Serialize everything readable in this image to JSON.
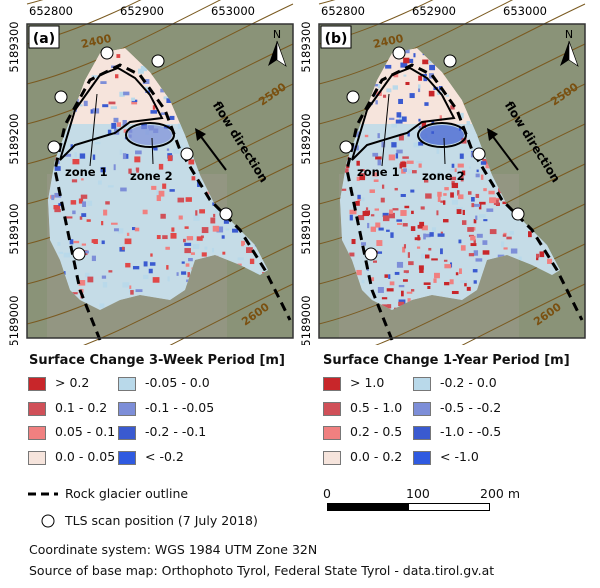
{
  "panels": [
    {
      "label": "(a)",
      "x_ticks": [
        "652800",
        "652900",
        "653000"
      ],
      "y_ticks": [
        "5189300",
        "5189200",
        "5189100",
        "5189000"
      ],
      "contours": [
        "2400",
        "2500",
        "2600"
      ],
      "zone1": "zone 1",
      "zone2": "zone 2",
      "flow": "flow direction",
      "north": "N",
      "mode": "3week"
    },
    {
      "label": "(b)",
      "x_ticks": [
        "652800",
        "652900",
        "653000"
      ],
      "y_ticks": [
        "5189300",
        "5189200",
        "5189100",
        "5189000"
      ],
      "contours": [
        "2400",
        "2500",
        "2600"
      ],
      "zone1": "zone 1",
      "zone2": "zone 2",
      "flow": "flow direction",
      "north": "N",
      "mode": "1year"
    }
  ],
  "legend_3week": {
    "title": "Surface Change 3-Week Period [m]",
    "classes": [
      {
        "label": "> 0.2",
        "color": "#c8262a"
      },
      {
        "label": "0.1 - 0.2",
        "color": "#d05058"
      },
      {
        "label": "0.05 - 0.1",
        "color": "#f08080"
      },
      {
        "label": "0.0 - 0.05",
        "color": "#f6e4dc"
      },
      {
        "label": "-0.05 - 0.0",
        "color": "#b9d9ea"
      },
      {
        "label": "-0.1 - -0.05",
        "color": "#7d8ed8"
      },
      {
        "label": "-0.2 - -0.1",
        "color": "#3a5ad0"
      },
      {
        "label": "< -0.2",
        "color": "#2f5ae0"
      }
    ]
  },
  "legend_1year": {
    "title": "Surface Change 1-Year Period [m]",
    "classes": [
      {
        "label": "> 1.0",
        "color": "#c8262a"
      },
      {
        "label": "0.5 - 1.0",
        "color": "#d05058"
      },
      {
        "label": "0.2 - 0.5",
        "color": "#f08080"
      },
      {
        "label": "0.0 - 0.2",
        "color": "#f6e4dc"
      },
      {
        "label": "-0.2 - 0.0",
        "color": "#b9d9ea"
      },
      {
        "label": "-0.5 - -0.2",
        "color": "#7d8ed8"
      },
      {
        "label": "-1.0 - -0.5",
        "color": "#3a5ad0"
      },
      {
        "label": "< -1.0",
        "color": "#2f5ae0"
      }
    ]
  },
  "outline_label": "Rock glacier outline",
  "tls_label": "TLS scan position (7 July 2018)",
  "scale": {
    "ticks": [
      "0",
      "100",
      "200 m"
    ]
  },
  "footer": {
    "crs": "Coordinate system: WGS 1984 UTM Zone 32N",
    "source": "Source of base map: Orthophoto Tyrol, Federal State Tyrol - data.tirol.gv.at"
  }
}
